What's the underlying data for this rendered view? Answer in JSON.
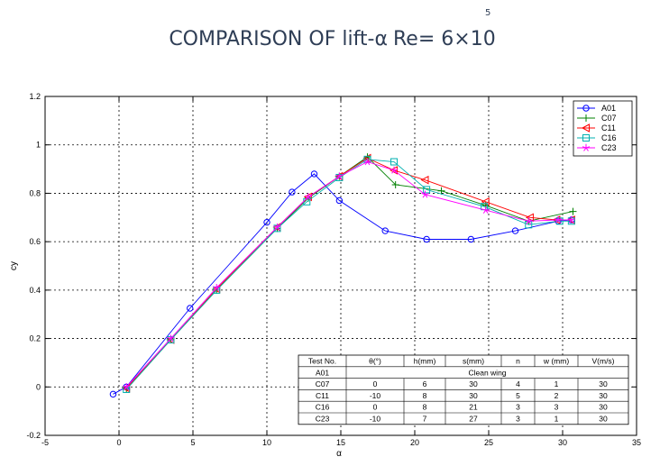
{
  "chart_data": {
    "type": "line",
    "title": "COMPARISON OF lift-α",
    "title_re": "Re= 6×10",
    "title_exponent": "5",
    "xlabel": "α",
    "ylabel": "cy",
    "xlim": [
      -5,
      35
    ],
    "ylim": [
      -0.2,
      1.2
    ],
    "xticks": [
      -5,
      0,
      5,
      10,
      15,
      20,
      25,
      30,
      35
    ],
    "yticks": [
      -0.2,
      0,
      0.2,
      0.4,
      0.6,
      0.8,
      1,
      1.2
    ],
    "xtick_labels": [
      "-5",
      "0",
      "5",
      "10",
      "15",
      "20",
      "25",
      "30",
      "35"
    ],
    "ytick_labels": [
      "-0.2",
      "0",
      "0.2",
      "0.4",
      "0.6",
      "0.8",
      "1",
      "1.2"
    ],
    "grid": true,
    "legend_position": "top-right",
    "series": [
      {
        "name": "A01",
        "color": "#0000ff",
        "marker": "circle",
        "x": [
          -0.4,
          0.5,
          4.8,
          10.0,
          11.7,
          13.2,
          14.9,
          18.0,
          20.8,
          23.8,
          26.8,
          29.7,
          30.6
        ],
        "y": [
          -0.03,
          0.0,
          0.325,
          0.68,
          0.805,
          0.88,
          0.77,
          0.645,
          0.61,
          0.61,
          0.645,
          0.685,
          0.69
        ]
      },
      {
        "name": "C07",
        "color": "#008000",
        "marker": "plus",
        "x": [
          0.5,
          3.5,
          6.6,
          10.7,
          12.8,
          14.9,
          16.8,
          18.7,
          21.8,
          24.8,
          27.7,
          30.7
        ],
        "y": [
          -0.01,
          0.195,
          0.4,
          0.655,
          0.78,
          0.87,
          0.95,
          0.835,
          0.81,
          0.75,
          0.685,
          0.725
        ]
      },
      {
        "name": "C11",
        "color": "#ff0000",
        "marker": "triangle-left",
        "x": [
          0.5,
          3.5,
          6.6,
          10.7,
          12.8,
          14.9,
          16.8,
          18.6,
          20.7,
          24.8,
          27.8,
          29.6,
          30.6
        ],
        "y": [
          -0.005,
          0.195,
          0.405,
          0.66,
          0.785,
          0.87,
          0.945,
          0.895,
          0.855,
          0.765,
          0.7,
          0.69,
          0.69
        ]
      },
      {
        "name": "C16",
        "color": "#00b0b0",
        "marker": "square",
        "x": [
          0.5,
          3.5,
          6.6,
          10.7,
          12.7,
          14.9,
          16.8,
          18.6,
          20.8,
          24.7,
          27.7,
          29.8,
          30.6
        ],
        "y": [
          -0.01,
          0.195,
          0.4,
          0.655,
          0.765,
          0.865,
          0.94,
          0.93,
          0.815,
          0.745,
          0.67,
          0.685,
          0.685
        ]
      },
      {
        "name": "C23",
        "color": "#ff00ff",
        "marker": "star",
        "x": [
          0.5,
          3.5,
          6.6,
          10.7,
          12.8,
          14.9,
          16.8,
          18.6,
          20.7,
          24.8,
          27.7,
          29.7,
          30.6
        ],
        "y": [
          0.0,
          0.2,
          0.41,
          0.66,
          0.785,
          0.87,
          0.93,
          0.895,
          0.795,
          0.73,
          0.685,
          0.69,
          0.69
        ]
      }
    ],
    "table": {
      "headers": [
        "Test No.",
        "θ(°)",
        "h(mm)",
        "s(mm)",
        "n",
        "w (mm)",
        "V(m/s)"
      ],
      "rows": [
        [
          "A01",
          "Clean wing"
        ],
        [
          "C07",
          "0",
          "6",
          "30",
          "4",
          "1",
          "30"
        ],
        [
          "C11",
          "-10",
          "8",
          "30",
          "5",
          "2",
          "30"
        ],
        [
          "C16",
          "0",
          "8",
          "21",
          "3",
          "3",
          "30"
        ],
        [
          "C23",
          "-10",
          "7",
          "27",
          "3",
          "1",
          "30"
        ]
      ]
    }
  }
}
